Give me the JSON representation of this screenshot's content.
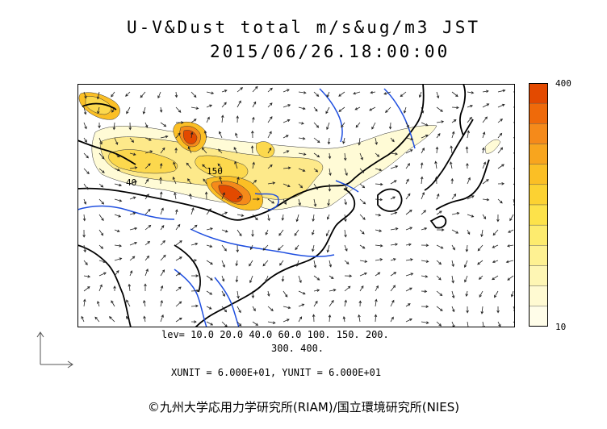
{
  "title_line1": "U-V&Dust total m/s&ug/m3 JST",
  "title_line2": "2015/06/26.18:00:00",
  "legend": {
    "max_label": "400",
    "min_label": "10",
    "colors": [
      "#e34a00",
      "#ef6a0a",
      "#f58a1a",
      "#f8a51e",
      "#fbbf25",
      "#fcd232",
      "#fde24a",
      "#fdeb6e",
      "#fef192",
      "#fef6b4",
      "#fffad2",
      "#fffde9"
    ]
  },
  "levels_line1": "lev= 10.0 20.0 40.0 60.0 100. 150. 200.",
  "levels_line2": "300. 400.",
  "contour_labels": [
    "150",
    "40"
  ],
  "units_text": "XUNIT = 6.000E+01, YUNIT = 6.000E+01",
  "credit": "©九州大学応用力学研究所(RIAM)/国立環境研究所(NIES)",
  "colors": {
    "coast": "#000000",
    "river": "#1f4fe0",
    "arrows": "#222222"
  }
}
